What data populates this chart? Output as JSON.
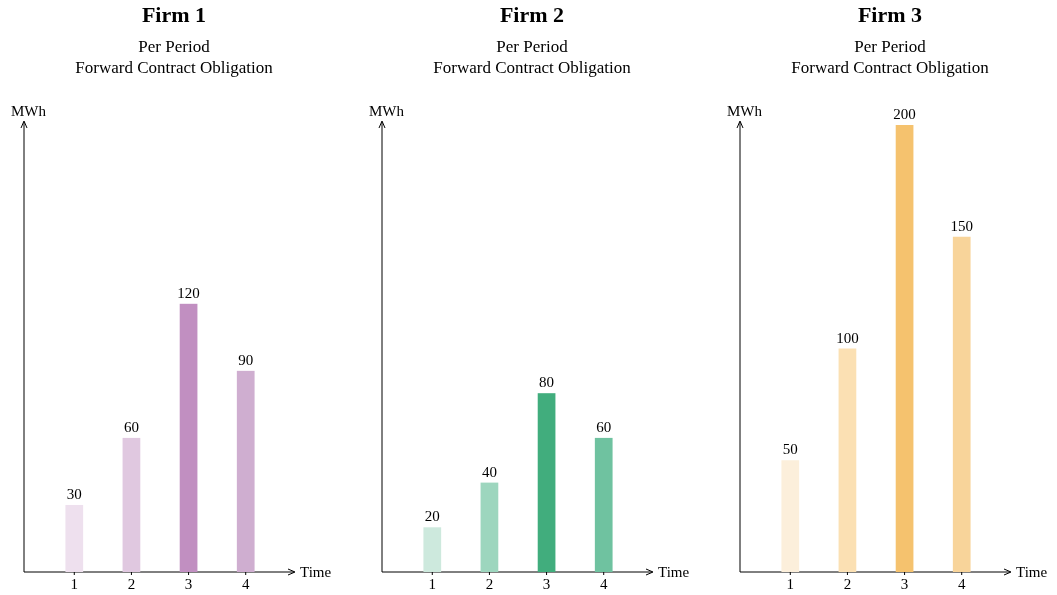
{
  "chart_data": [
    {
      "type": "bar",
      "title": "Firm 1",
      "subtitle": "Per Period\nForward Contract Obligation",
      "xlabel": "Time",
      "ylabel": "MWh",
      "categories": [
        "1",
        "2",
        "3",
        "4"
      ],
      "values": [
        30,
        60,
        120,
        90
      ],
      "colors": [
        "#eee0ee",
        "#e0c8e0",
        "#c18fc1",
        "#cfaed0"
      ],
      "data_labels": true,
      "ylim": [
        0,
        200
      ]
    },
    {
      "type": "bar",
      "title": "Firm 2",
      "subtitle": "Per Period\nForward Contract Obligation",
      "xlabel": "Time",
      "ylabel": "MWh",
      "categories": [
        "1",
        "2",
        "3",
        "4"
      ],
      "values": [
        20,
        40,
        80,
        60
      ],
      "colors": [
        "#cde9dd",
        "#9dd6be",
        "#41ad7d",
        "#6fc2a0"
      ],
      "data_labels": true,
      "ylim": [
        0,
        200
      ]
    },
    {
      "type": "bar",
      "title": "Firm 3",
      "subtitle": "Per Period\nForward Contract Obligation",
      "xlabel": "Time",
      "ylabel": "MWh",
      "categories": [
        "1",
        "2",
        "3",
        "4"
      ],
      "values": [
        50,
        100,
        200,
        150
      ],
      "colors": [
        "#fcefdb",
        "#fbe0b3",
        "#f5c26e",
        "#f8d49a"
      ],
      "data_labels": true,
      "ylim": [
        0,
        200
      ]
    }
  ]
}
